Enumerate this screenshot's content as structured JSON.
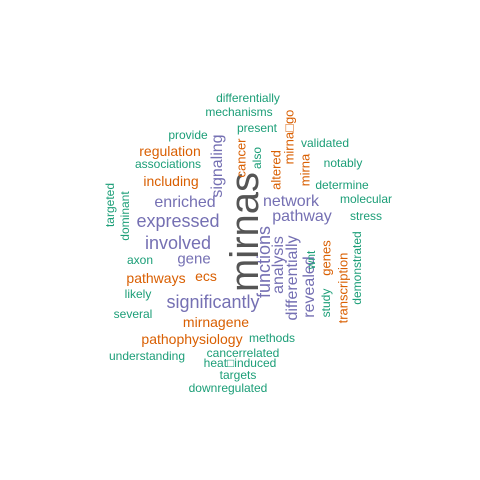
{
  "palette": {
    "green": "#1b9e77",
    "orange": "#d95f02",
    "purple": "#7570b3",
    "gray": "#555555"
  },
  "words": [
    {
      "text": "mirnas",
      "color": "gray"
    },
    {
      "text": "expressed",
      "color": "purple"
    },
    {
      "text": "involved",
      "color": "purple"
    },
    {
      "text": "significantly",
      "color": "purple"
    },
    {
      "text": "enriched",
      "color": "purple"
    },
    {
      "text": "network",
      "color": "purple"
    },
    {
      "text": "pathway",
      "color": "purple"
    },
    {
      "text": "gene",
      "color": "purple"
    },
    {
      "text": "signaling",
      "color": "purple"
    },
    {
      "text": "functions",
      "color": "purple"
    },
    {
      "text": "analysis",
      "color": "purple"
    },
    {
      "text": "differentially",
      "color": "purple"
    },
    {
      "text": "revealed",
      "color": "purple"
    },
    {
      "text": "regulation",
      "color": "orange"
    },
    {
      "text": "including",
      "color": "orange"
    },
    {
      "text": "pathways",
      "color": "orange"
    },
    {
      "text": "ecs",
      "color": "orange"
    },
    {
      "text": "mirnagene",
      "color": "orange"
    },
    {
      "text": "pathophysiology",
      "color": "orange"
    },
    {
      "text": "cancer",
      "color": "orange"
    },
    {
      "text": "altered",
      "color": "orange"
    },
    {
      "text": "mirna",
      "color": "orange"
    },
    {
      "text": "mirna□go",
      "color": "orange"
    },
    {
      "text": "genes",
      "color": "orange"
    },
    {
      "text": "transcription",
      "color": "orange"
    },
    {
      "text": "differentially",
      "color": "green"
    },
    {
      "text": "mechanisms",
      "color": "green"
    },
    {
      "text": "present",
      "color": "green"
    },
    {
      "text": "provide",
      "color": "green"
    },
    {
      "text": "validated",
      "color": "green"
    },
    {
      "text": "associations",
      "color": "green"
    },
    {
      "text": "notably",
      "color": "green"
    },
    {
      "text": "also",
      "color": "green"
    },
    {
      "text": "determine",
      "color": "green"
    },
    {
      "text": "molecular",
      "color": "green"
    },
    {
      "text": "stress",
      "color": "green"
    },
    {
      "text": "targeted",
      "color": "green"
    },
    {
      "text": "dominant",
      "color": "green"
    },
    {
      "text": "axon",
      "color": "green"
    },
    {
      "text": "wnt",
      "color": "green"
    },
    {
      "text": "likely",
      "color": "green"
    },
    {
      "text": "study",
      "color": "green"
    },
    {
      "text": "demonstrated",
      "color": "green"
    },
    {
      "text": "several",
      "color": "green"
    },
    {
      "text": "methods",
      "color": "green"
    },
    {
      "text": "understanding",
      "color": "green"
    },
    {
      "text": "cancerrelated",
      "color": "green"
    },
    {
      "text": "heat□induced",
      "color": "green"
    },
    {
      "text": "targets",
      "color": "green"
    },
    {
      "text": "downregulated",
      "color": "green"
    }
  ]
}
